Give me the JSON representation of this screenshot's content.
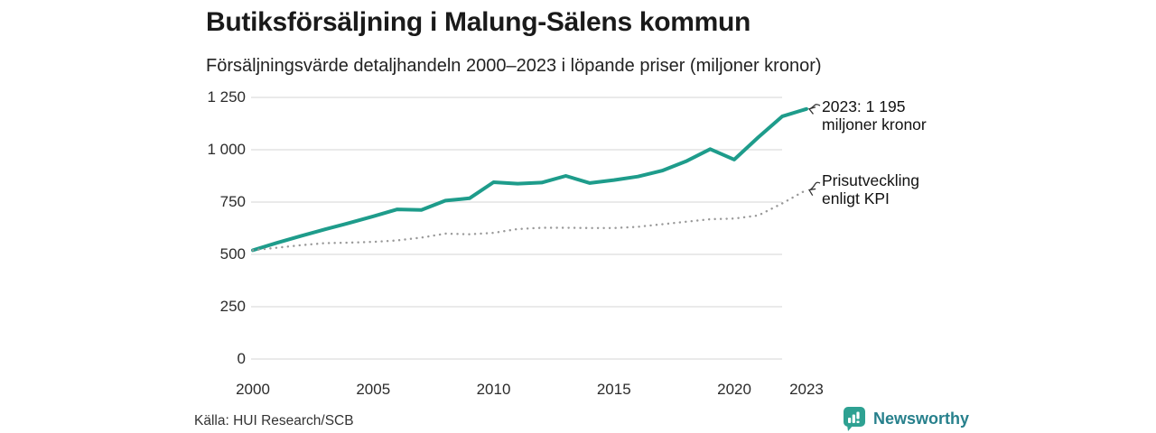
{
  "header": {
    "title": "Butiksförsäljning i Malung-Sälens kommun",
    "subtitle": "Försäljningsvärde detaljhandeln 2000–2023 i löpande priser (miljoner kronor)"
  },
  "chart_data": {
    "type": "line",
    "title": "Butiksförsäljning i Malung-Sälens kommun",
    "subtitle": "Försäljningsvärde detaljhandeln 2000–2023 i löpande priser (miljoner kronor)",
    "x": [
      2000,
      2001,
      2002,
      2003,
      2004,
      2005,
      2006,
      2007,
      2008,
      2009,
      2010,
      2011,
      2012,
      2013,
      2014,
      2015,
      2016,
      2017,
      2018,
      2019,
      2020,
      2021,
      2022,
      2023
    ],
    "series": [
      {
        "name": "Försäljningsvärde detaljhandeln i löpande priser",
        "style": "solid",
        "color": "#1E9C8B",
        "values": [
          520,
          555,
          588,
          620,
          650,
          682,
          715,
          712,
          757,
          768,
          845,
          838,
          843,
          875,
          841,
          855,
          872,
          900,
          945,
          1003,
          953,
          1060,
          1160,
          1195
        ]
      },
      {
        "name": "Prisutveckling enligt KPI",
        "style": "dotted",
        "color": "#999999",
        "values": [
          520,
          532,
          544,
          554,
          556,
          560,
          567,
          580,
          599,
          596,
          603,
          621,
          627,
          627,
          626,
          626,
          632,
          644,
          656,
          668,
          671,
          686,
          744,
          808
        ]
      }
    ],
    "ylim": [
      0,
      1250
    ],
    "yticks": {
      "values": [
        0,
        250,
        500,
        750,
        1000,
        1250
      ],
      "labels": [
        "0",
        "250",
        "500",
        "750",
        "1 000",
        "1 250"
      ]
    },
    "xticks": {
      "values": [
        2000,
        2005,
        2010,
        2015,
        2020,
        2023
      ],
      "labels": [
        "2000",
        "2005",
        "2010",
        "2015",
        "2020",
        "2023"
      ]
    },
    "grid": "horizontal",
    "grid_color": "#DDDDDD",
    "legend_position": "none",
    "annotations": [
      {
        "line1": "2023: 1 195",
        "line2": "miljoner kronor",
        "target_series": 0,
        "target_year": 2023
      },
      {
        "line1": "Prisutveckling",
        "line2": "enligt KPI",
        "target_series": 1,
        "target_year": 2023
      }
    ]
  },
  "footer": {
    "source": "Källa: HUI Research/SCB",
    "logo_text": "Newsworthy"
  },
  "colors": {
    "accent_teal": "#1E9C8B",
    "kpi_gray": "#999999",
    "grid_gray": "#DDDDDD",
    "logo_icon_teal": "#2EA192",
    "logo_text_teal": "#27808C",
    "annotation_arrow": "#333333"
  }
}
